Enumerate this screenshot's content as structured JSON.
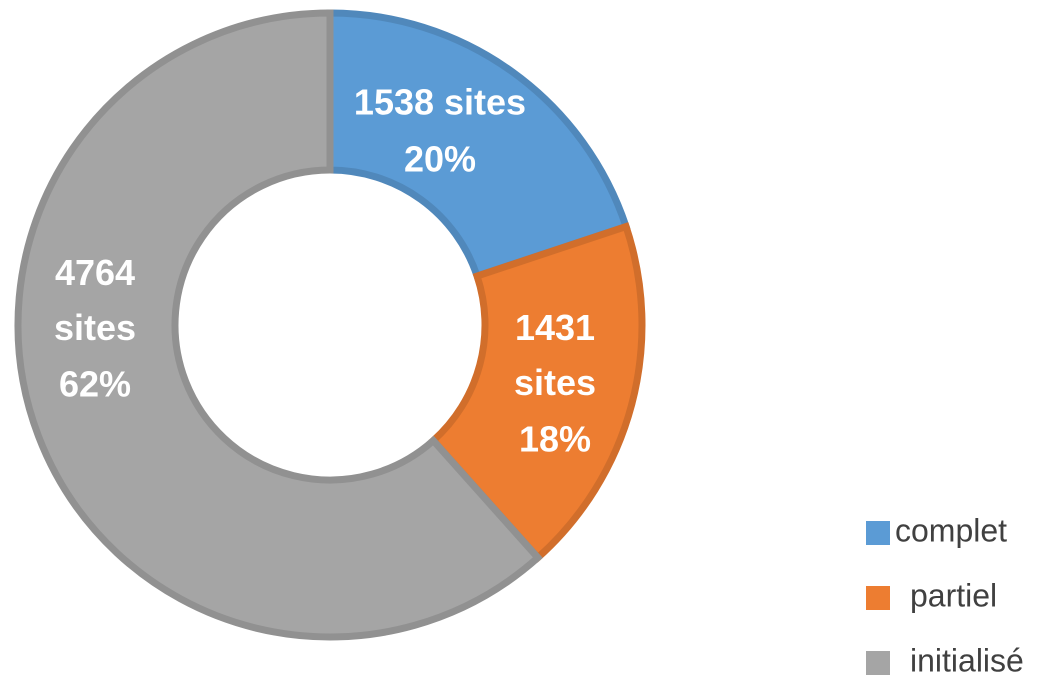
{
  "chart_data": {
    "type": "donut",
    "labels": [
      "complet",
      "partiel",
      "initialisé"
    ],
    "values": [
      1538,
      1431,
      4764
    ],
    "value_labels": [
      "1538 sites",
      "1431 sites",
      "4764 sites"
    ],
    "percents": [
      20,
      18,
      62
    ],
    "percent_labels": [
      "20%",
      "18%",
      "62%"
    ],
    "colors": [
      "#5b9bd5",
      "#ed7d31",
      "#a5a5a5"
    ],
    "legend": "bottom-right"
  }
}
